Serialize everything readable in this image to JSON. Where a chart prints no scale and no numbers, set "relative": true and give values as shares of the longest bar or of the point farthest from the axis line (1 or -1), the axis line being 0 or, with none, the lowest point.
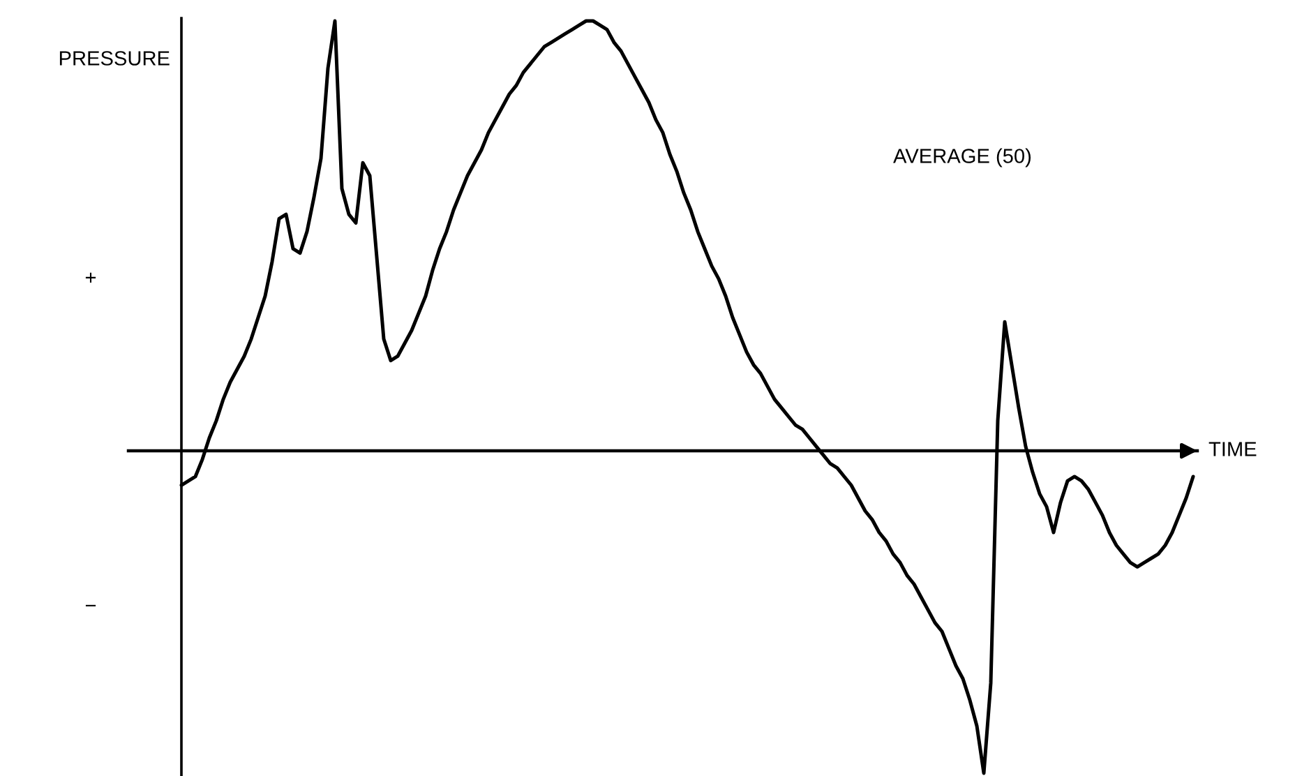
{
  "chart_data": {
    "type": "line",
    "relative": true,
    "xlabel": "TIME",
    "ylabel": "PRESSURE",
    "annotations": [
      "AVERAGE (50)",
      "+",
      "−"
    ],
    "line_style": "solid",
    "categories": [
      null,
      null,
      null,
      null,
      null,
      null,
      null,
      null,
      null,
      null,
      null,
      null,
      null,
      null,
      null,
      null,
      null,
      null,
      null,
      null,
      null,
      null,
      null,
      null,
      null,
      null,
      null,
      null,
      null,
      null,
      null,
      null,
      null,
      null,
      null,
      null,
      null,
      null,
      null,
      null,
      null,
      null,
      null,
      null,
      null,
      null,
      null,
      null,
      null,
      null,
      null,
      null,
      null,
      null,
      null,
      null,
      null,
      null,
      null,
      null,
      null,
      null,
      null,
      null,
      null,
      null,
      null,
      null,
      null,
      null,
      null,
      null,
      null,
      null,
      null,
      null,
      null,
      null,
      null,
      null,
      null,
      null,
      null,
      null,
      null,
      null,
      null,
      null,
      null,
      null,
      null,
      null,
      null,
      null,
      null,
      null,
      null,
      null,
      null,
      null,
      null,
      null,
      null,
      null,
      null,
      null,
      null,
      null,
      null,
      null,
      null,
      null,
      null,
      null,
      null,
      null,
      null,
      null,
      null,
      null,
      null,
      null,
      null,
      null,
      null,
      null,
      null,
      null,
      null,
      null,
      null,
      null,
      null,
      null,
      null,
      null,
      null,
      null,
      null,
      null,
      null,
      null,
      null,
      null,
      null,
      null
    ],
    "series": [
      {
        "color": "#000000",
        "values": [
          -0.08,
          -0.07,
          -0.06,
          -0.02,
          0.03,
          0.07,
          0.12,
          0.16,
          0.19,
          0.22,
          0.26,
          0.31,
          0.36,
          0.44,
          0.54,
          0.55,
          0.47,
          0.46,
          0.51,
          0.59,
          0.68,
          0.89,
          1.0,
          0.61,
          0.55,
          0.53,
          0.67,
          0.64,
          0.45,
          0.26,
          0.21,
          0.22,
          0.25,
          0.28,
          0.32,
          0.36,
          0.42,
          0.47,
          0.51,
          0.56,
          0.6,
          0.64,
          0.67,
          0.7,
          0.74,
          0.77,
          0.8,
          0.83,
          0.85,
          0.88,
          0.9,
          0.92,
          0.94,
          0.95,
          0.96,
          0.97,
          0.98,
          0.99,
          1.0,
          1.0,
          0.99,
          0.98,
          0.95,
          0.93,
          0.9,
          0.87,
          0.84,
          0.81,
          0.77,
          0.74,
          0.69,
          0.65,
          0.6,
          0.56,
          0.51,
          0.47,
          0.43,
          0.4,
          0.36,
          0.31,
          0.27,
          0.23,
          0.2,
          0.18,
          0.15,
          0.12,
          0.1,
          0.08,
          0.06,
          0.05,
          0.03,
          0.01,
          -0.01,
          -0.03,
          -0.04,
          -0.06,
          -0.08,
          -0.11,
          -0.14,
          -0.16,
          -0.19,
          -0.21,
          -0.24,
          -0.26,
          -0.29,
          -0.31,
          -0.34,
          -0.37,
          -0.4,
          -0.42,
          -0.46,
          -0.5,
          -0.53,
          -0.58,
          -0.64,
          -0.75,
          -0.54,
          0.07,
          0.3,
          0.2,
          0.1,
          0.01,
          -0.05,
          -0.1,
          -0.13,
          -0.19,
          -0.12,
          -0.07,
          -0.06,
          -0.07,
          -0.09,
          -0.12,
          -0.15,
          -0.19,
          -0.22,
          -0.24,
          -0.26,
          -0.27,
          -0.26,
          -0.25,
          -0.24,
          -0.22,
          -0.19,
          -0.15,
          -0.11,
          -0.06
        ]
      }
    ]
  }
}
